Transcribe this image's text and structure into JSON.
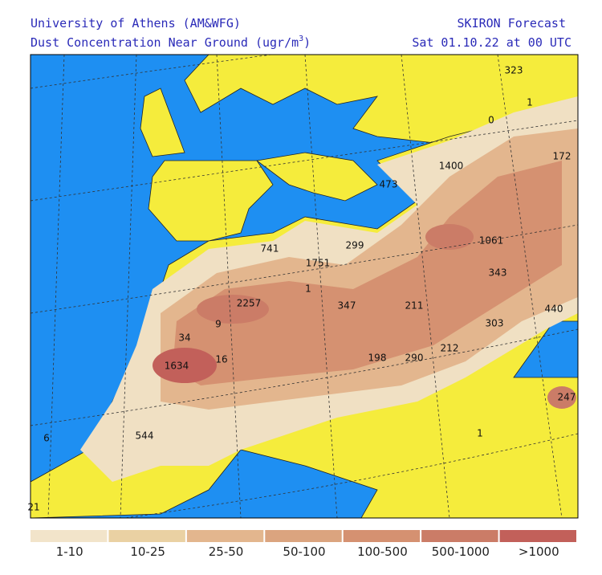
{
  "header": {
    "institution": "University of Athens (AM&WFG)",
    "product": "Dust Concentration Near Ground (ugr/m",
    "product_superscript": "3",
    "product_close": ")",
    "model": "SKIRON Forecast",
    "valid_time": "Sat 01.10.22 at 00 UTC"
  },
  "map": {
    "labels": [
      "323",
      "1",
      "0",
      "172",
      "1400",
      "473",
      "1061",
      "299",
      "741",
      "1751",
      "343",
      "1",
      "2257",
      "347",
      "211",
      "440",
      "9",
      "303",
      "34",
      "16",
      "198",
      "290",
      "212",
      "1634",
      "247",
      "544",
      "1",
      "6",
      "21"
    ]
  },
  "legend": {
    "items": [
      {
        "label": "1-10",
        "color": "#f2e4ca"
      },
      {
        "label": "10-25",
        "color": "#ead1a3"
      },
      {
        "label": "25-50",
        "color": "#e3b68e"
      },
      {
        "label": "50-100",
        "color": "#dba47f"
      },
      {
        "label": "100-500",
        "color": "#d59171"
      },
      {
        "label": "500-1000",
        "color": "#cb7c67"
      },
      {
        "label": ">1000",
        "color": "#c2605a"
      }
    ]
  }
}
